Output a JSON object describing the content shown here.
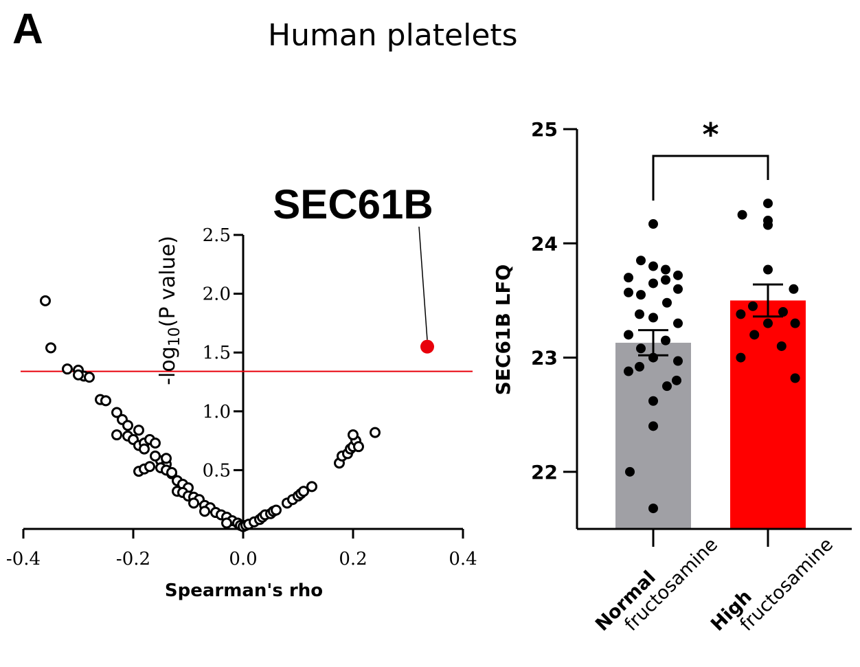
{
  "panel_label": "A",
  "title": "Human platelets",
  "chart_data": [
    {
      "type": "scatter",
      "title": "",
      "xlabel": "Spearman's rho",
      "ylabel_prefix": "-log",
      "ylabel_sub": "10",
      "ylabel_suffix": "(P value)",
      "xlim": [
        -0.4,
        0.4
      ],
      "ylim": [
        0,
        2.5
      ],
      "x_ticks": [
        -0.4,
        -0.2,
        0.0,
        0.2,
        0.4
      ],
      "x_tick_labels": [
        "-0.4",
        "-0.2",
        "0.0",
        "0.2",
        "0.4"
      ],
      "y_ticks": [
        0.5,
        1.0,
        1.5,
        2.0,
        2.5
      ],
      "y_tick_labels": [
        "0.5",
        "1.0",
        "1.5",
        "2.0",
        "2.5"
      ],
      "threshold_y": 1.34,
      "threshold_color": "#e8000b",
      "highlight": {
        "label": "SEC61B",
        "x": 0.335,
        "y": 1.55,
        "color": "#e8000b"
      },
      "points": [
        [
          -0.36,
          1.94
        ],
        [
          -0.35,
          1.54
        ],
        [
          -0.32,
          1.36
        ],
        [
          -0.3,
          1.35
        ],
        [
          -0.29,
          1.3
        ],
        [
          -0.3,
          1.31
        ],
        [
          -0.28,
          1.29
        ],
        [
          -0.26,
          1.1
        ],
        [
          -0.25,
          1.09
        ],
        [
          -0.23,
          0.99
        ],
        [
          -0.22,
          0.93
        ],
        [
          -0.21,
          0.88
        ],
        [
          -0.23,
          0.8
        ],
        [
          -0.21,
          0.79
        ],
        [
          -0.19,
          0.84
        ],
        [
          -0.2,
          0.76
        ],
        [
          -0.19,
          0.71
        ],
        [
          -0.18,
          0.73
        ],
        [
          -0.17,
          0.76
        ],
        [
          -0.18,
          0.68
        ],
        [
          -0.16,
          0.73
        ],
        [
          -0.19,
          0.49
        ],
        [
          -0.18,
          0.51
        ],
        [
          -0.17,
          0.53
        ],
        [
          -0.15,
          0.58
        ],
        [
          -0.14,
          0.55
        ],
        [
          -0.15,
          0.52
        ],
        [
          -0.14,
          0.5
        ],
        [
          -0.13,
          0.47
        ],
        [
          -0.16,
          0.62
        ],
        [
          -0.14,
          0.6
        ],
        [
          -0.13,
          0.48
        ],
        [
          -0.12,
          0.41
        ],
        [
          -0.11,
          0.38
        ],
        [
          -0.12,
          0.32
        ],
        [
          -0.1,
          0.35
        ],
        [
          -0.11,
          0.31
        ],
        [
          -0.1,
          0.28
        ],
        [
          -0.09,
          0.27
        ],
        [
          -0.08,
          0.25
        ],
        [
          -0.09,
          0.22
        ],
        [
          -0.07,
          0.2
        ],
        [
          -0.06,
          0.18
        ],
        [
          -0.07,
          0.15
        ],
        [
          -0.05,
          0.14
        ],
        [
          -0.04,
          0.12
        ],
        [
          -0.03,
          0.1
        ],
        [
          -0.02,
          0.07
        ],
        [
          -0.03,
          0.05
        ],
        [
          -0.01,
          0.05
        ],
        [
          -0.005,
          0.03
        ],
        [
          0.0,
          0.02
        ],
        [
          0.005,
          0.03
        ],
        [
          0.01,
          0.04
        ],
        [
          0.02,
          0.06
        ],
        [
          0.03,
          0.08
        ],
        [
          0.035,
          0.1
        ],
        [
          0.04,
          0.12
        ],
        [
          0.05,
          0.13
        ],
        [
          0.055,
          0.15
        ],
        [
          0.06,
          0.16
        ],
        [
          0.08,
          0.22
        ],
        [
          0.09,
          0.25
        ],
        [
          0.1,
          0.28
        ],
        [
          0.105,
          0.3
        ],
        [
          0.11,
          0.32
        ],
        [
          0.125,
          0.36
        ],
        [
          0.175,
          0.56
        ],
        [
          0.18,
          0.62
        ],
        [
          0.19,
          0.64
        ],
        [
          0.195,
          0.68
        ],
        [
          0.2,
          0.7
        ],
        [
          0.205,
          0.75
        ],
        [
          0.21,
          0.7
        ],
        [
          0.2,
          0.8
        ],
        [
          0.24,
          0.82
        ]
      ]
    },
    {
      "type": "bar",
      "title": "",
      "xlabel": "",
      "ylabel": "SEC61B LFQ",
      "ylim": [
        21.5,
        25
      ],
      "y_ticks": [
        22,
        23,
        24,
        25
      ],
      "y_tick_labels": [
        "22",
        "23",
        "24",
        "25"
      ],
      "categories": [
        {
          "bold": "Normal",
          "rest": "fructosamine"
        },
        {
          "bold": "High",
          "rest": "fructosamine"
        }
      ],
      "values": [
        23.13,
        23.5
      ],
      "sem": [
        0.11,
        0.14
      ],
      "colors": [
        "#a0a0a5",
        "#ff0000"
      ],
      "significance": "*",
      "points": [
        [
          24.17,
          22.0,
          21.68,
          22.4,
          22.62,
          22.8,
          22.92,
          22.75,
          22.88,
          22.97,
          23.0,
          23.08,
          23.15,
          23.2,
          23.3,
          23.35,
          23.38,
          23.48,
          23.57,
          23.6,
          23.65,
          23.55,
          23.68,
          23.7,
          23.72,
          23.8,
          23.85,
          23.77
        ],
        [
          24.35,
          24.25,
          24.2,
          24.16,
          23.77,
          23.6,
          23.45,
          23.4,
          23.38,
          23.3,
          23.3,
          23.2,
          23.1,
          23.0,
          22.82
        ]
      ]
    }
  ]
}
